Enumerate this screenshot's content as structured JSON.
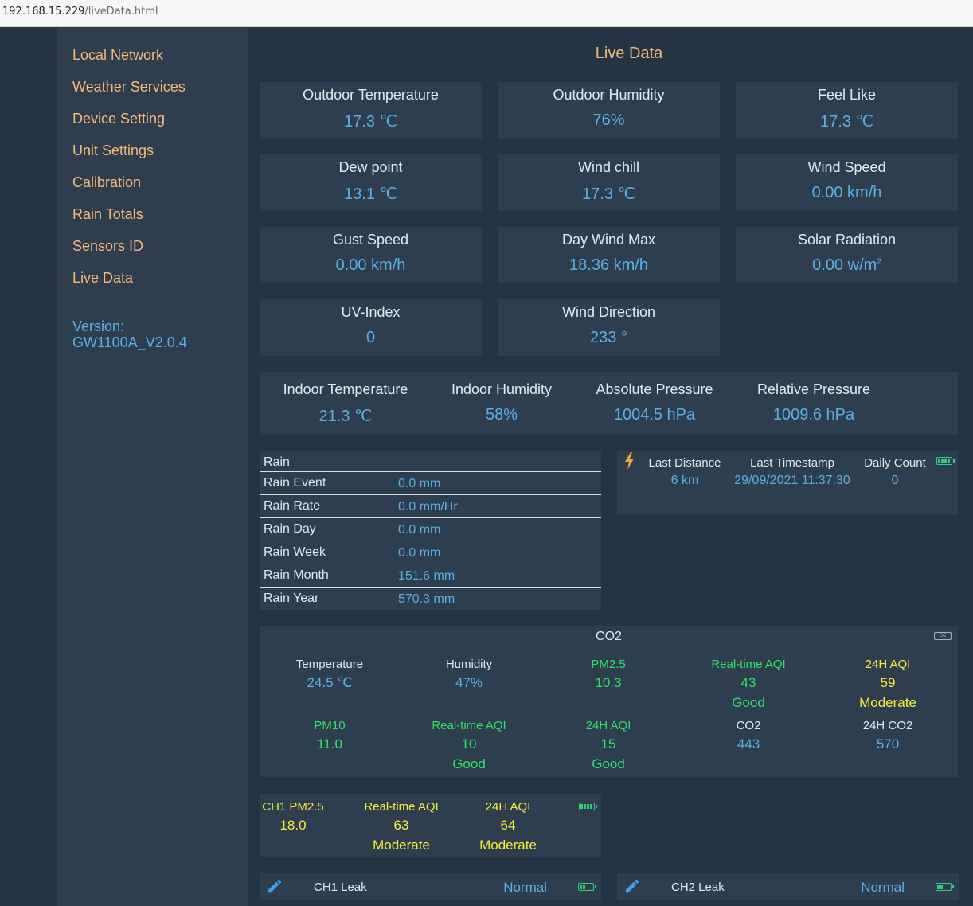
{
  "browser": {
    "host": "192.168.15.229",
    "path": "/liveData.html"
  },
  "sidebar": {
    "items": [
      {
        "label": "Local Network"
      },
      {
        "label": "Weather Services"
      },
      {
        "label": "Device Setting"
      },
      {
        "label": "Unit Settings"
      },
      {
        "label": "Calibration"
      },
      {
        "label": "Rain Totals"
      },
      {
        "label": "Sensors ID"
      },
      {
        "label": "Live Data"
      }
    ],
    "version_label": "Version:",
    "version_value": "GW1100A_V2.0.4"
  },
  "page_title": "Live Data",
  "cards": [
    {
      "label": "Outdoor Temperature",
      "value": "17.3 ℃"
    },
    {
      "label": "Outdoor Humidity",
      "value": "76%"
    },
    {
      "label": "Feel Like",
      "value": "17.3 ℃"
    },
    {
      "label": "Dew point",
      "value": "13.1 ℃"
    },
    {
      "label": "Wind chill",
      "value": "17.3 ℃"
    },
    {
      "label": "Wind Speed",
      "value": "0.00 km/h"
    },
    {
      "label": "Gust Speed",
      "value": "0.00 km/h"
    },
    {
      "label": "Day Wind Max",
      "value": "18.36 km/h"
    },
    {
      "label": "Solar Radiation",
      "value": "0.00 w/m",
      "sup": "2"
    },
    {
      "label": "UV-Index",
      "value": "0"
    },
    {
      "label": "Wind Direction",
      "value": "233 °"
    }
  ],
  "indoor": [
    {
      "label": "Indoor Temperature",
      "value": "21.3 ℃"
    },
    {
      "label": "Indoor Humidity",
      "value": "58%"
    },
    {
      "label": "Absolute Pressure",
      "value": "1004.5 hPa"
    },
    {
      "label": "Relative Pressure",
      "value": "1009.6 hPa"
    }
  ],
  "rain": {
    "header": "Rain",
    "rows": [
      {
        "label": "Rain Event",
        "value": "0.0 mm"
      },
      {
        "label": "Rain Rate",
        "value": "0.0 mm/Hr"
      },
      {
        "label": "Rain Day",
        "value": "0.0 mm"
      },
      {
        "label": "Rain Week",
        "value": "0.0 mm"
      },
      {
        "label": "Rain Month",
        "value": "151.6 mm"
      },
      {
        "label": "Rain Year",
        "value": "570.3 mm"
      }
    ]
  },
  "lightning": {
    "cols": [
      {
        "label": "Last Distance",
        "value": "6 km"
      },
      {
        "label": "Last Timestamp",
        "value": "29/09/2021 11:37:30"
      },
      {
        "label": "Daily Count",
        "value": "0"
      }
    ]
  },
  "co2": {
    "title": "CO2",
    "badge": "DC",
    "row1": [
      {
        "label": "Temperature",
        "value": "24.5 ℃",
        "quality": ""
      },
      {
        "label": "Humidity",
        "value": "47%",
        "quality": ""
      },
      {
        "label": "PM2.5",
        "value": "10.3",
        "quality": ""
      },
      {
        "label": "Real-time AQI",
        "value": "43",
        "quality": "Good"
      },
      {
        "label": "24H AQI",
        "value": "59",
        "quality": "Moderate"
      }
    ],
    "row2": [
      {
        "label": "PM10",
        "value": "11.0",
        "quality": ""
      },
      {
        "label": "Real-time AQI",
        "value": "10",
        "quality": "Good"
      },
      {
        "label": "24H AQI",
        "value": "15",
        "quality": "Good"
      },
      {
        "label": "CO2",
        "value": "443",
        "quality": ""
      },
      {
        "label": "24H CO2",
        "value": "570",
        "quality": ""
      }
    ]
  },
  "ch1_pm": [
    {
      "label": "CH1 PM2.5",
      "value": "18.0",
      "quality": ""
    },
    {
      "label": "Real-time AQI",
      "value": "63",
      "quality": "Moderate"
    },
    {
      "label": "24H AQI",
      "value": "64",
      "quality": "Moderate"
    }
  ],
  "leaks": [
    {
      "name": "CH1 Leak",
      "status": "Normal"
    },
    {
      "name": "CH2 Leak",
      "status": "Normal"
    }
  ],
  "colors": {
    "accent": "#f5b97a",
    "value": "#5aafe6",
    "good": "#2fe06a",
    "moderate": "#f4f03a",
    "panel": "#2f3e4e",
    "bg": "#253444"
  }
}
